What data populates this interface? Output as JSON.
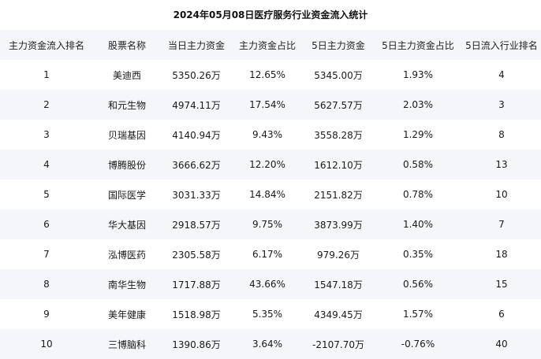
{
  "title": "2024年05月08日医疗服务行业资金流入统计",
  "table": {
    "headers": [
      "主力资金流入排名",
      "股票名称",
      "当日主力资金",
      "主力资金占比",
      "5日主力资金",
      "5日主力资金占比",
      "5日流入行业排名"
    ],
    "rows": [
      [
        "1",
        "美迪西",
        "5350.26万",
        "12.65%",
        "5345.00万",
        "1.93%",
        "4"
      ],
      [
        "2",
        "和元生物",
        "4974.11万",
        "17.54%",
        "5627.57万",
        "2.03%",
        "3"
      ],
      [
        "3",
        "贝瑞基因",
        "4140.94万",
        "9.43%",
        "3558.28万",
        "1.29%",
        "8"
      ],
      [
        "4",
        "博腾股份",
        "3666.62万",
        "12.20%",
        "1612.10万",
        "0.58%",
        "13"
      ],
      [
        "5",
        "国际医学",
        "3031.33万",
        "14.84%",
        "2151.82万",
        "0.78%",
        "10"
      ],
      [
        "6",
        "华大基因",
        "2918.57万",
        "9.75%",
        "3873.99万",
        "1.40%",
        "7"
      ],
      [
        "7",
        "泓博医药",
        "2305.58万",
        "6.17%",
        "979.26万",
        "0.35%",
        "18"
      ],
      [
        "8",
        "南华生物",
        "1717.88万",
        "43.66%",
        "1547.18万",
        "0.56%",
        "15"
      ],
      [
        "9",
        "美年健康",
        "1518.98万",
        "5.35%",
        "4349.45万",
        "1.57%",
        "6"
      ],
      [
        "10",
        "三博脑科",
        "1390.86万",
        "3.64%",
        "-2107.70万",
        "-0.76%",
        "40"
      ]
    ]
  }
}
